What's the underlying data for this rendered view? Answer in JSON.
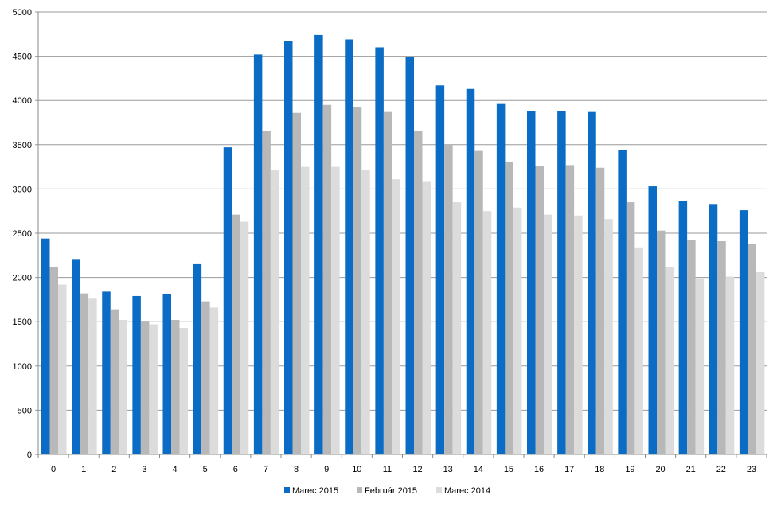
{
  "chart_data": {
    "type": "bar",
    "title": "",
    "xlabel": "",
    "ylabel": "",
    "ylim": [
      0,
      5000
    ],
    "yticks": [
      0,
      500,
      1000,
      1500,
      2000,
      2500,
      3000,
      3500,
      4000,
      4500,
      5000
    ],
    "grid": true,
    "legend_position": "bottom",
    "categories": [
      "0",
      "1",
      "2",
      "3",
      "4",
      "5",
      "6",
      "7",
      "8",
      "9",
      "10",
      "11",
      "12",
      "13",
      "14",
      "15",
      "16",
      "17",
      "18",
      "19",
      "20",
      "21",
      "22",
      "23"
    ],
    "series": [
      {
        "name": "Marec 2015",
        "color": "#0a6cc4",
        "values": [
          2440,
          2200,
          1840,
          1790,
          1810,
          2150,
          3470,
          4520,
          4670,
          4740,
          4690,
          4600,
          4490,
          4170,
          4130,
          3960,
          3880,
          3880,
          3870,
          3440,
          3030,
          2860,
          2830,
          2760
        ]
      },
      {
        "name": "Február 2015",
        "color": "#b8b8b8",
        "values": [
          2120,
          1820,
          1640,
          1510,
          1520,
          1730,
          2710,
          3660,
          3860,
          3950,
          3930,
          3870,
          3660,
          3500,
          3430,
          3310,
          3260,
          3270,
          3240,
          2850,
          2530,
          2420,
          2410,
          2380
        ]
      },
      {
        "name": "Marec 2014",
        "color": "#dcdcdc",
        "values": [
          1920,
          1760,
          1520,
          1470,
          1430,
          1660,
          2630,
          3210,
          3250,
          3250,
          3220,
          3110,
          3080,
          2850,
          2750,
          2790,
          2710,
          2700,
          2660,
          2340,
          2120,
          1990,
          2010,
          2060
        ]
      }
    ]
  }
}
